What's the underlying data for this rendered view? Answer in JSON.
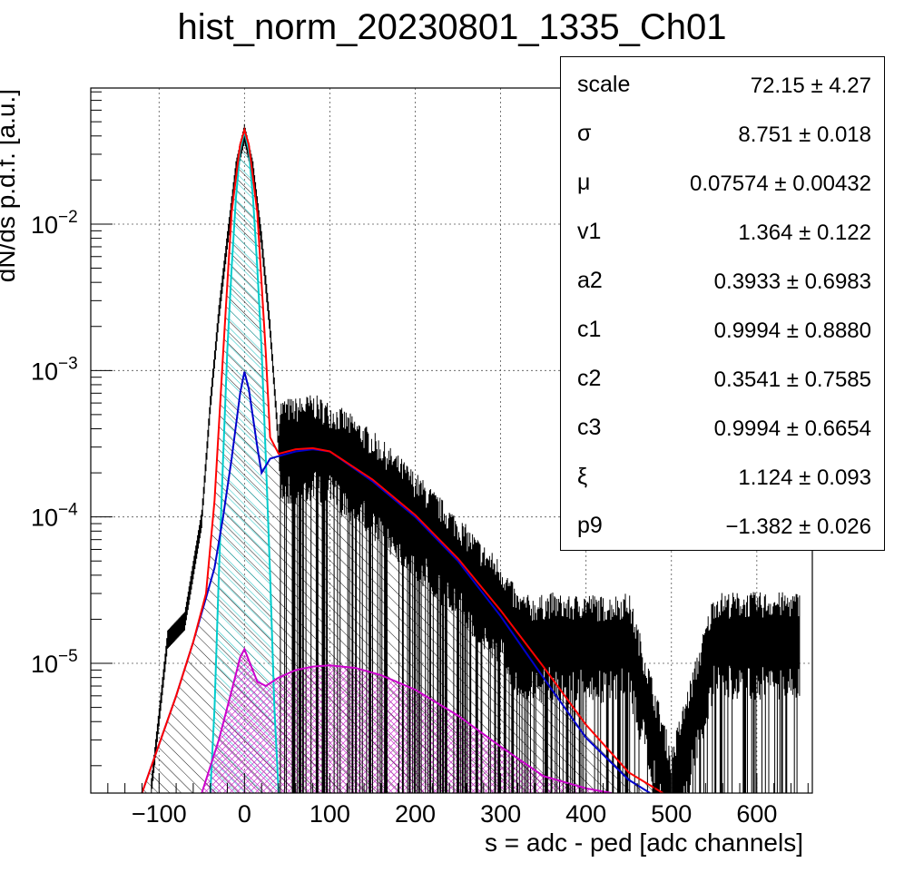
{
  "chart_data": {
    "type": "histogram",
    "title": "hist_norm_20230801_1335_Ch01",
    "xlabel": "s = adc - ped [adc channels]",
    "ylabel": "dN/ds p.d.f. [a.u.]",
    "xlim": [
      -180,
      665
    ],
    "ylim": [
      1.3e-06,
      0.085
    ],
    "yscale": "log",
    "grid": true,
    "x_ticks": [
      "−100",
      "0",
      "100",
      "200",
      "300",
      "400",
      "500",
      "600"
    ],
    "x_tick_values": [
      -100,
      0,
      100,
      200,
      300,
      400,
      500,
      600
    ],
    "y_ticks": [
      {
        "value": 0.01,
        "base": "10",
        "exp": "−2"
      },
      {
        "value": 0.001,
        "base": "10",
        "exp": "−3"
      },
      {
        "value": 0.0001,
        "base": "10",
        "exp": "−4"
      },
      {
        "value": 1e-05,
        "base": "10",
        "exp": "−5"
      }
    ],
    "series": [
      {
        "role": "data-histogram",
        "color": "#000000",
        "x": [
          -110,
          -90,
          -70,
          -50,
          -40,
          -30,
          -20,
          -10,
          0,
          10,
          20,
          30,
          40,
          60,
          80,
          100,
          120,
          150,
          180,
          200,
          220,
          250,
          280,
          300,
          320,
          340,
          360,
          380,
          400,
          420,
          450,
          500,
          550,
          600,
          650
        ],
        "y": [
          1.3e-06,
          1.5e-05,
          2e-05,
          0.0001,
          0.0006,
          0.0025,
          0.008,
          0.024,
          0.043,
          0.024,
          0.008,
          0.002,
          0.00032,
          0.00032,
          0.00034,
          0.0003,
          0.00026,
          0.00019,
          0.00013,
          0.0001,
          7.6e-05,
          5e-05,
          3.2e-05,
          2.5e-05,
          1.5e-05,
          1.4e-05,
          1.5e-05,
          1.4e-05,
          1.5e-05,
          1.4e-05,
          1.5e-05,
          1.3e-06,
          1.5e-05,
          1.5e-05,
          1.5e-05
        ]
      },
      {
        "role": "total-fit",
        "color": "#ff0000",
        "x": [
          -120,
          -80,
          -60,
          -45,
          -35,
          -25,
          -15,
          -5,
          0,
          5,
          15,
          25,
          30,
          40,
          60,
          80,
          100,
          150,
          200,
          250,
          300,
          350,
          400,
          450,
          490
        ],
        "y": [
          1.3e-06,
          6e-06,
          1.4e-05,
          3e-05,
          0.00013,
          0.0013,
          0.012,
          0.035,
          0.044,
          0.035,
          0.012,
          0.0013,
          0.00035,
          0.00027,
          0.00029,
          0.000295,
          0.00028,
          0.00018,
          0.000103,
          5.2e-05,
          2.3e-05,
          9.5e-06,
          3.8e-06,
          1.8e-06,
          1.3e-06
        ]
      },
      {
        "role": "background-component",
        "color": "#0000cc",
        "x": [
          -120,
          -80,
          -60,
          -45,
          -35,
          -25,
          -15,
          -5,
          0,
          5,
          15,
          20,
          30,
          40,
          60,
          80,
          100,
          150,
          200,
          250,
          300,
          350,
          400,
          450,
          475
        ],
        "y": [
          1.3e-06,
          6e-06,
          1.4e-05,
          2.8e-05,
          4.5e-05,
          0.0001,
          0.00025,
          0.0007,
          0.00098,
          0.00075,
          0.0003,
          0.0002,
          0.00025,
          0.00026,
          0.00028,
          0.00029,
          0.00028,
          0.000175,
          0.0001,
          5e-05,
          2.1e-05,
          8e-06,
          3.1e-06,
          1.6e-06,
          1.3e-06
        ]
      },
      {
        "role": "pedestal-gaussian",
        "color": "#00cccc",
        "x": [
          -40,
          -35,
          -30,
          -25,
          -20,
          -15,
          -10,
          -5,
          0,
          5,
          10,
          15,
          20,
          25,
          30,
          35,
          40
        ],
        "y": [
          1.3e-06,
          5e-06,
          4e-05,
          0.00025,
          0.0014,
          0.005,
          0.015,
          0.032,
          0.043,
          0.032,
          0.015,
          0.005,
          0.0014,
          0.00025,
          4e-05,
          5e-06,
          1.3e-06
        ]
      },
      {
        "role": "second-component",
        "color": "#cc00cc",
        "x": [
          -50,
          -30,
          -15,
          -5,
          0,
          5,
          15,
          25,
          40,
          60,
          80,
          100,
          130,
          160,
          200,
          250,
          300,
          350,
          400,
          430
        ],
        "y": [
          1.3e-06,
          3e-06,
          6.5e-06,
          1.1e-05,
          1.25e-05,
          1.05e-05,
          7.5e-06,
          7e-06,
          8e-06,
          9e-06,
          9.5e-06,
          9.7e-06,
          9.3e-06,
          8.3e-06,
          6.6e-06,
          4.4e-06,
          2.7e-06,
          1.7e-06,
          1.4e-06,
          1.3e-06
        ]
      }
    ]
  },
  "stats": [
    {
      "name": "scale",
      "value": "72.15 ± 4.27"
    },
    {
      "name": "σ",
      "value": "8.751 ± 0.018"
    },
    {
      "name": "μ",
      "value": "0.07574 ± 0.00432"
    },
    {
      "name": "v1",
      "value": "1.364 ± 0.122"
    },
    {
      "name": "a2",
      "value": "0.3933 ± 0.6983"
    },
    {
      "name": "c1",
      "value": "0.9994 ± 0.8880"
    },
    {
      "name": "c2",
      "value": "0.3541 ± 0.7585"
    },
    {
      "name": "c3",
      "value": "0.9994 ± 0.6654"
    },
    {
      "name": "ξ",
      "value": "1.124 ± 0.093"
    },
    {
      "name": "p9",
      "value": "−1.382 ± 0.026"
    }
  ]
}
